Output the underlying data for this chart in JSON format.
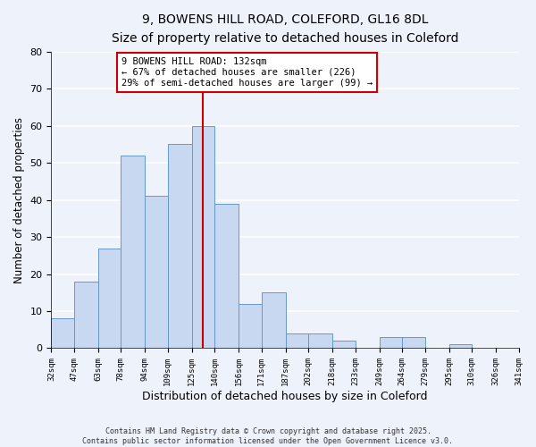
{
  "title": "9, BOWENS HILL ROAD, COLEFORD, GL16 8DL",
  "subtitle": "Size of property relative to detached houses in Coleford",
  "xlabel": "Distribution of detached houses by size in Coleford",
  "ylabel": "Number of detached properties",
  "bar_edges": [
    32,
    47,
    63,
    78,
    94,
    109,
    125,
    140,
    156,
    171,
    187,
    202,
    218,
    233,
    249,
    264,
    279,
    295,
    310,
    326,
    341
  ],
  "bar_heights": [
    8,
    18,
    27,
    52,
    41,
    55,
    60,
    39,
    12,
    15,
    4,
    4,
    2,
    0,
    3,
    3,
    0,
    1,
    0,
    0
  ],
  "bar_color": "#c8d8f0",
  "bar_edgecolor": "#6699cc",
  "vline_x": 132,
  "vline_color": "#cc0000",
  "ylim": [
    0,
    80
  ],
  "annotation_line1": "9 BOWENS HILL ROAD: 132sqm",
  "annotation_line2": "← 67% of detached houses are smaller (226)",
  "annotation_line3": "29% of semi-detached houses are larger (99) →",
  "tick_labels": [
    "32sqm",
    "47sqm",
    "63sqm",
    "78sqm",
    "94sqm",
    "109sqm",
    "125sqm",
    "140sqm",
    "156sqm",
    "171sqm",
    "187sqm",
    "202sqm",
    "218sqm",
    "233sqm",
    "249sqm",
    "264sqm",
    "279sqm",
    "295sqm",
    "310sqm",
    "326sqm",
    "341sqm"
  ],
  "footer_line1": "Contains HM Land Registry data © Crown copyright and database right 2025.",
  "footer_line2": "Contains public sector information licensed under the Open Government Licence v3.0.",
  "background_color": "#eef2fb",
  "grid_color": "#ffffff"
}
